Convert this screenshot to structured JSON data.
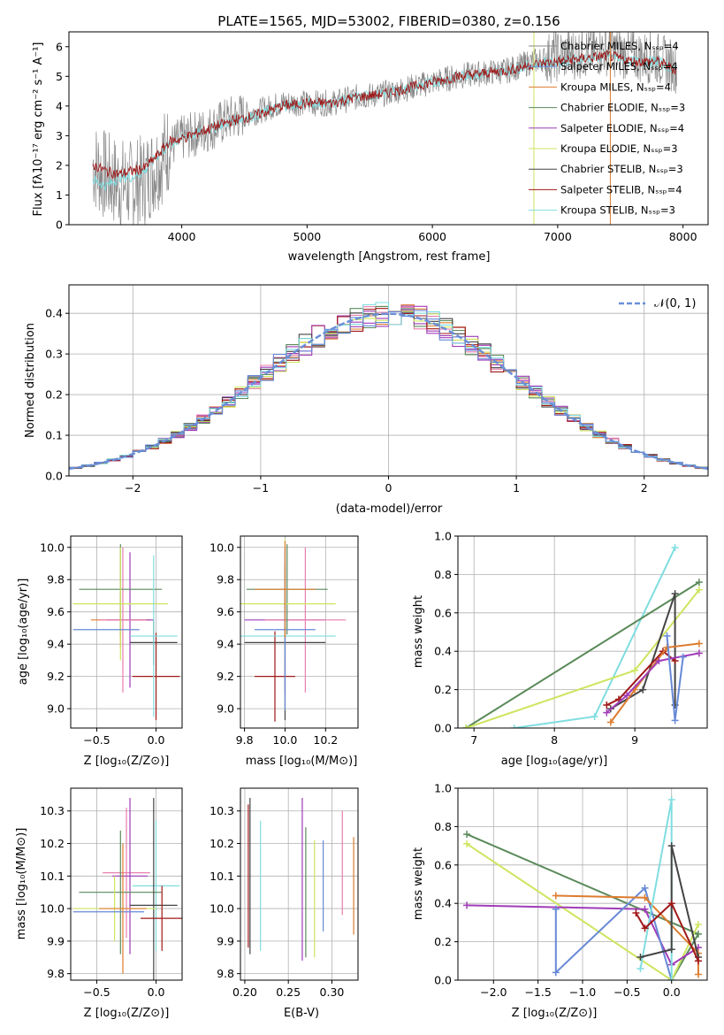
{
  "colors": [
    "#dd7c2e",
    "#a43bb8",
    "#e87fae",
    "#5a8a5a",
    "#a03cb8",
    "#cde55e",
    "#444444",
    "#a01818",
    "#7fdde0",
    "#6789d6"
  ],
  "chart_data": [
    {
      "type": "line",
      "id": "spectrum",
      "title": "PLATE=1565, MJD=53002, FIBERID=0380, z=0.156",
      "xlabel": "wavelength [Angstrom, rest frame]",
      "ylabel": "Flux [fλ10⁻¹⁷ erg cm⁻² s⁻¹ A⁻¹]",
      "xlim": [
        3100,
        8200
      ],
      "ylim": [
        0,
        6.5
      ],
      "xticks": [
        4000,
        5000,
        6000,
        7000,
        8000
      ],
      "yticks": [
        0,
        1,
        2,
        3,
        4,
        5,
        6
      ],
      "grid": false,
      "legend_position": "top-right",
      "legend": [
        {
          "label": "Chabrier MILES, N_SSP=4",
          "color": "#888888"
        },
        {
          "label": "Salpeter MILES, N_SSP=4",
          "color": "#6789d6"
        },
        {
          "label": "Kroupa MILES, N_SSP=4",
          "color": "#dd7c2e"
        },
        {
          "label": "Chabrier ELODIE, N_SSP=3",
          "color": "#5a8a5a"
        },
        {
          "label": "Salpeter ELODIE, N_SSP=4",
          "color": "#a03cb8"
        },
        {
          "label": "Kroupa ELODIE, N_SSP=3",
          "color": "#cde55e"
        },
        {
          "label": "Chabrier STELIB, N_SSP=3",
          "color": "#444444"
        },
        {
          "label": "Salpeter STELIB, N_SSP=4",
          "color": "#a01818"
        },
        {
          "label": "Kroupa STELIB, N_SSP=3",
          "color": "#7fdde0"
        }
      ],
      "series": [
        {
          "color": "#888888",
          "x": [
            3300,
            3400,
            3500,
            3600,
            3700,
            3800,
            3900,
            4000,
            4200,
            4400,
            4600,
            4800,
            5000,
            5200,
            5400,
            5600,
            5800,
            6000,
            6200,
            6400,
            6600,
            6800,
            7000,
            7200,
            7400,
            7600,
            7800,
            7950
          ],
          "y": [
            2.0,
            1.6,
            1.4,
            1.3,
            1.5,
            2.0,
            2.6,
            2.9,
            3.2,
            3.6,
            3.8,
            4.1,
            4.1,
            4.1,
            4.3,
            4.4,
            4.6,
            4.8,
            5.0,
            5.1,
            5.2,
            5.5,
            5.7,
            5.8,
            5.9,
            5.7,
            5.6,
            5.3
          ]
        },
        {
          "color": "#7fdde0",
          "x": [
            3300,
            3400,
            3500,
            3600,
            3700,
            3800,
            3900,
            4000,
            4200,
            4400,
            4600,
            4800,
            5000,
            5200,
            5400,
            5600,
            5800,
            6000,
            6200,
            6400,
            6600,
            6800,
            7000,
            7200,
            7400,
            7600,
            7800,
            7950
          ],
          "y": [
            1.5,
            1.3,
            1.6,
            1.6,
            1.8,
            2.3,
            2.7,
            2.9,
            3.2,
            3.5,
            3.7,
            4.0,
            4.1,
            4.1,
            4.3,
            4.4,
            4.6,
            4.8,
            5.0,
            5.1,
            5.2,
            5.4,
            5.5,
            5.6,
            5.7,
            5.5,
            5.5,
            5.2
          ]
        },
        {
          "color": "#a01818",
          "x": [
            3300,
            3400,
            3500,
            3600,
            3700,
            3800,
            3900,
            4000,
            4200,
            4400,
            4600,
            4800,
            5000,
            5200,
            5400,
            5600,
            5800,
            6000,
            6200,
            6400,
            6600,
            6800,
            7000,
            7200,
            7400,
            7600,
            7800,
            7950
          ],
          "y": [
            2.0,
            1.8,
            1.7,
            1.8,
            1.9,
            2.3,
            2.8,
            2.9,
            3.2,
            3.5,
            3.7,
            4.0,
            4.1,
            4.1,
            4.3,
            4.4,
            4.6,
            4.8,
            5.0,
            5.1,
            5.2,
            5.4,
            5.5,
            5.6,
            5.7,
            5.5,
            5.5,
            5.2
          ]
        }
      ]
    },
    {
      "type": "histogram",
      "id": "residuals",
      "xlabel": "(data-model)/error",
      "ylabel": "Normed distribution",
      "xlim": [
        -2.5,
        2.5
      ],
      "ylim": [
        0,
        0.47
      ],
      "xticks": [
        -2,
        -1,
        0,
        1,
        2
      ],
      "yticks": [
        0.0,
        0.1,
        0.2,
        0.3,
        0.4
      ],
      "grid": true,
      "legend_position": "top-right",
      "legend": [
        {
          "label": "𝒩(0, 1)",
          "color": "#6a8fd6",
          "style": "dashed"
        }
      ],
      "bin_width": 0.1,
      "reference_curve": {
        "type": "gaussian",
        "mean": 0,
        "sigma": 1
      }
    },
    {
      "type": "scatter",
      "id": "age_vs_Z",
      "xlabel": "Z [log₁₀(Z/Z⊙)]",
      "ylabel": "age  [log₁₀(age/yr)]",
      "xlim": [
        -0.72,
        0.22
      ],
      "ylim": [
        8.88,
        10.07
      ],
      "xticks": [
        -0.5,
        0.0
      ],
      "yticks": [
        9.0,
        9.2,
        9.4,
        9.6,
        9.8,
        10.0
      ],
      "grid": true,
      "points": [
        {
          "x": -0.3,
          "y": 9.55,
          "xerr": 0.25,
          "yerr": 0.17,
          "color": "#dd7c2e"
        },
        {
          "x": -0.22,
          "y": 9.55,
          "xerr": 0.2,
          "yerr": 0.42,
          "color": "#a03cb8"
        },
        {
          "x": -0.28,
          "y": 9.55,
          "xerr": 0.2,
          "yerr": 0.45,
          "color": "#e87fae"
        },
        {
          "x": -0.3,
          "y": 9.74,
          "xerr": 0.35,
          "yerr": 0.28,
          "color": "#5a8a5a"
        },
        {
          "x": -0.3,
          "y": 9.65,
          "xerr": 0.4,
          "yerr": 0.35,
          "color": "#cde55e"
        },
        {
          "x": -0.02,
          "y": 9.41,
          "xerr": 0.2,
          "yerr": 0.14,
          "color": "#444444"
        },
        {
          "x": 0.0,
          "y": 9.2,
          "xerr": 0.2,
          "yerr": 0.27,
          "color": "#a01818"
        },
        {
          "x": -0.02,
          "y": 9.45,
          "xerr": 0.2,
          "yerr": 0.5,
          "color": "#7fdde0"
        },
        {
          "x": -0.42,
          "y": 9.49,
          "xerr": 0.28,
          "yerr": 0.0,
          "color": "#6789d6"
        }
      ]
    },
    {
      "type": "scatter",
      "id": "age_vs_mass",
      "xlabel": "mass [log₁₀(M/M⊙)]",
      "ylabel": "",
      "xlim": [
        9.78,
        10.36
      ],
      "ylim": [
        8.88,
        10.07
      ],
      "xticks": [
        9.8,
        10.0,
        10.2
      ],
      "yticks": [
        9.0,
        9.2,
        9.4,
        9.6,
        9.8,
        10.0
      ],
      "grid": true,
      "points": [
        {
          "x": 10.0,
          "y": 9.55,
          "xerr": 0.2,
          "yerr": 0.45,
          "color": "#a03cb8"
        },
        {
          "x": 10.1,
          "y": 9.55,
          "xerr": 0.2,
          "yerr": 0.45,
          "color": "#e87fae"
        },
        {
          "x": 10.01,
          "y": 9.74,
          "xerr": 0.2,
          "yerr": 0.28,
          "color": "#5a8a5a"
        },
        {
          "x": 10.0,
          "y": 9.65,
          "xerr": 0.25,
          "yerr": 0.4,
          "color": "#cde55e"
        },
        {
          "x": 10.0,
          "y": 9.41,
          "xerr": 0.2,
          "yerr": 0.48,
          "color": "#444444"
        },
        {
          "x": 9.95,
          "y": 9.2,
          "xerr": 0.1,
          "yerr": 0.28,
          "color": "#a01818"
        },
        {
          "x": 10.0,
          "y": 9.45,
          "xerr": 0.25,
          "yerr": 0.15,
          "color": "#7fdde0"
        },
        {
          "x": 10.0,
          "y": 9.49,
          "xerr": 0.15,
          "yerr": 0.5,
          "color": "#6789d6"
        },
        {
          "x": 10.0,
          "y": 9.74,
          "xerr": 0.15,
          "yerr": 0.3,
          "color": "#dd7c2e"
        }
      ]
    },
    {
      "type": "line",
      "id": "mass_weight_vs_age",
      "xlabel": "age  [log₁₀(age/yr)]",
      "ylabel": "mass weight",
      "xlim": [
        6.8,
        9.9
      ],
      "ylim": [
        0,
        1.0
      ],
      "xticks": [
        7,
        8,
        9
      ],
      "yticks": [
        0.0,
        0.2,
        0.4,
        0.6,
        0.8,
        1.0
      ],
      "grid": true,
      "series": [
        {
          "color": "#7fdde0",
          "x": [
            7.5,
            8.5,
            9.5
          ],
          "y": [
            0.0,
            0.06,
            0.94
          ]
        },
        {
          "color": "#5a8a5a",
          "x": [
            6.9,
            9.8
          ],
          "y": [
            0.0,
            0.76
          ]
        },
        {
          "color": "#cde55e",
          "x": [
            6.9,
            9.0,
            9.8
          ],
          "y": [
            0.0,
            0.3,
            0.72
          ]
        },
        {
          "color": "#444444",
          "x": [
            8.7,
            9.1,
            9.5,
            9.5
          ],
          "y": [
            0.1,
            0.2,
            0.7,
            0.12
          ]
        },
        {
          "color": "#a01818",
          "x": [
            8.65,
            8.8,
            9.35,
            9.5
          ],
          "y": [
            0.12,
            0.15,
            0.4,
            0.35
          ]
        },
        {
          "color": "#dd7c2e",
          "x": [
            8.7,
            9.0,
            9.4,
            9.8
          ],
          "y": [
            0.03,
            0.2,
            0.42,
            0.44
          ]
        },
        {
          "color": "#a03cb8",
          "x": [
            8.65,
            8.9,
            9.3,
            9.8
          ],
          "y": [
            0.08,
            0.17,
            0.35,
            0.39
          ]
        },
        {
          "color": "#6789d6",
          "x": [
            9.4,
            9.5,
            9.6
          ],
          "y": [
            0.48,
            0.04,
            0.37
          ]
        }
      ]
    },
    {
      "type": "scatter",
      "id": "mass_vs_Z",
      "xlabel": "Z [log₁₀(Z/Z⊙)]",
      "ylabel": "mass [log₁₀(M/M⊙)]",
      "xlim": [
        -0.72,
        0.22
      ],
      "ylim": [
        9.78,
        10.37
      ],
      "xticks": [
        -0.5,
        0.0
      ],
      "yticks": [
        9.8,
        9.9,
        10.0,
        10.1,
        10.2,
        10.3
      ],
      "grid": true,
      "points": [
        {
          "x": -0.25,
          "y": 10.11,
          "xerr": 0.2,
          "yerr": 0.2,
          "color": "#e87fae"
        },
        {
          "x": -0.22,
          "y": 10.1,
          "xerr": 0.15,
          "yerr": 0.24,
          "color": "#a03cb8"
        },
        {
          "x": 0.0,
          "y": 10.07,
          "xerr": 0.2,
          "yerr": 0.2,
          "color": "#7fdde0"
        },
        {
          "x": -0.3,
          "y": 10.05,
          "xerr": 0.35,
          "yerr": 0.19,
          "color": "#5a8a5a"
        },
        {
          "x": -0.02,
          "y": 10.01,
          "xerr": 0.2,
          "yerr": 0.33,
          "color": "#444444"
        },
        {
          "x": -0.35,
          "y": 10.0,
          "xerr": 0.35,
          "yerr": 0.1,
          "color": "#cde55e"
        },
        {
          "x": -0.4,
          "y": 9.99,
          "xerr": 0.3,
          "yerr": 0.0,
          "color": "#6789d6"
        },
        {
          "x": 0.05,
          "y": 9.97,
          "xerr": 0.18,
          "yerr": 0.1,
          "color": "#a01818"
        },
        {
          "x": -0.28,
          "y": 10.0,
          "xerr": 0.2,
          "yerr": 0.2,
          "color": "#dd7c2e"
        }
      ]
    },
    {
      "type": "scatter",
      "id": "mass_vs_ebv",
      "xlabel": "E(B-V)",
      "ylabel": "",
      "xlim": [
        0.195,
        0.33
      ],
      "ylim": [
        9.78,
        10.37
      ],
      "xticks": [
        0.2,
        0.25,
        0.3
      ],
      "yticks": [
        9.8,
        9.9,
        10.0,
        10.1,
        10.2,
        10.3
      ],
      "grid": true,
      "points": [
        {
          "x": 0.204,
          "y": 10.1,
          "xerr": 0,
          "yerr": 0.22,
          "color": "#a01818"
        },
        {
          "x": 0.206,
          "y": 10.1,
          "xerr": 0,
          "yerr": 0.24,
          "color": "#444444"
        },
        {
          "x": 0.218,
          "y": 10.07,
          "xerr": 0,
          "yerr": 0.2,
          "color": "#7fdde0"
        },
        {
          "x": 0.266,
          "y": 10.09,
          "xerr": 0,
          "yerr": 0.25,
          "color": "#a03cb8"
        },
        {
          "x": 0.27,
          "y": 10.05,
          "xerr": 0,
          "yerr": 0.2,
          "color": "#5a8a5a"
        },
        {
          "x": 0.28,
          "y": 10.03,
          "xerr": 0,
          "yerr": 0.18,
          "color": "#cde55e"
        },
        {
          "x": 0.29,
          "y": 10.07,
          "xerr": 0,
          "yerr": 0.14,
          "color": "#6789d6"
        },
        {
          "x": 0.312,
          "y": 10.14,
          "xerr": 0,
          "yerr": 0.16,
          "color": "#e87fae"
        },
        {
          "x": 0.325,
          "y": 10.07,
          "xerr": 0,
          "yerr": 0.15,
          "color": "#dd7c2e"
        }
      ]
    },
    {
      "type": "line",
      "id": "mass_weight_vs_Z",
      "xlabel": "Z [log₁₀(Z/Z⊙)]",
      "ylabel": "mass weight",
      "xlim": [
        -2.4,
        0.4
      ],
      "ylim": [
        0,
        1.0
      ],
      "xticks": [
        -2.0,
        -1.5,
        -1.0,
        -0.5,
        0.0
      ],
      "yticks": [
        0.0,
        0.2,
        0.4,
        0.6,
        0.8,
        1.0
      ],
      "grid": true,
      "series": [
        {
          "color": "#5a8a5a",
          "x": [
            -2.3,
            0.3,
            0.0
          ],
          "y": [
            0.76,
            0.24,
            0.0
          ]
        },
        {
          "color": "#cde55e",
          "x": [
            -2.3,
            0.0,
            0.3
          ],
          "y": [
            0.71,
            0.0,
            0.29
          ]
        },
        {
          "color": "#a03cb8",
          "x": [
            -2.3,
            -0.3,
            0.0,
            0.3
          ],
          "y": [
            0.39,
            0.37,
            0.08,
            0.17
          ]
        },
        {
          "color": "#6789d6",
          "x": [
            -1.3,
            -1.3,
            -0.3,
            0.0
          ],
          "y": [
            0.37,
            0.04,
            0.48,
            0.0
          ]
        },
        {
          "color": "#dd7c2e",
          "x": [
            -1.3,
            -0.3,
            0.3,
            0.3
          ],
          "y": [
            0.44,
            0.43,
            0.14,
            0.03
          ]
        },
        {
          "color": "#7fdde0",
          "x": [
            -0.35,
            0.0,
            0.0
          ],
          "y": [
            0.06,
            0.94,
            0.0
          ]
        },
        {
          "color": "#444444",
          "x": [
            -0.35,
            0.0,
            0.0,
            0.3
          ],
          "y": [
            0.12,
            0.16,
            0.7,
            0.12
          ]
        },
        {
          "color": "#a01818",
          "x": [
            -0.4,
            -0.3,
            0.0,
            0.3
          ],
          "y": [
            0.35,
            0.27,
            0.4,
            0.1
          ]
        }
      ]
    }
  ]
}
